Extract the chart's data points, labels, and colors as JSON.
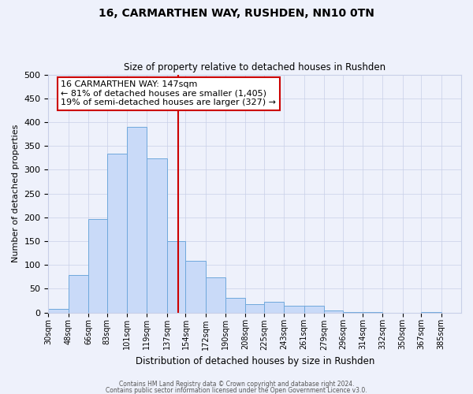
{
  "title": "16, CARMARTHEN WAY, RUSHDEN, NN10 0TN",
  "subtitle": "Size of property relative to detached houses in Rushden",
  "xlabel": "Distribution of detached houses by size in Rushden",
  "ylabel": "Number of detached properties",
  "bar_labels": [
    "30sqm",
    "48sqm",
    "66sqm",
    "83sqm",
    "101sqm",
    "119sqm",
    "137sqm",
    "154sqm",
    "172sqm",
    "190sqm",
    "208sqm",
    "225sqm",
    "243sqm",
    "261sqm",
    "279sqm",
    "296sqm",
    "314sqm",
    "332sqm",
    "350sqm",
    "367sqm",
    "385sqm"
  ],
  "bar_values": [
    8,
    78,
    197,
    333,
    390,
    323,
    150,
    109,
    73,
    30,
    18,
    22,
    14,
    14,
    5,
    1,
    1,
    0,
    0,
    1,
    0
  ],
  "bar_color": "#c9daf8",
  "bar_edge_color": "#6fa8dc",
  "property_line_x": 147,
  "bin_edges": [
    30,
    48,
    66,
    83,
    101,
    119,
    137,
    154,
    172,
    190,
    208,
    225,
    243,
    261,
    279,
    296,
    314,
    332,
    350,
    367,
    385,
    403
  ],
  "bin_left_edges": [
    30,
    48,
    66,
    83,
    101,
    119,
    137,
    154,
    172,
    190,
    208,
    225,
    243,
    261,
    279,
    296,
    314,
    332,
    350,
    367,
    385
  ],
  "tick_labels": [
    "30sqm",
    "48sqm",
    "66sqm",
    "83sqm",
    "101sqm",
    "119sqm",
    "137sqm",
    "154sqm",
    "172sqm",
    "190sqm",
    "208sqm",
    "225sqm",
    "243sqm",
    "261sqm",
    "279sqm",
    "296sqm",
    "314sqm",
    "332sqm",
    "350sqm",
    "367sqm",
    "385sqm"
  ],
  "ylim": [
    0,
    500
  ],
  "yticks": [
    0,
    50,
    100,
    150,
    200,
    250,
    300,
    350,
    400,
    450,
    500
  ],
  "annotation_line1": "16 CARMARTHEN WAY: 147sqm",
  "annotation_line2": "← 81% of detached houses are smaller (1,405)",
  "annotation_line3": "19% of semi-detached houses are larger (327) →",
  "footer_line1": "Contains HM Land Registry data © Crown copyright and database right 2024.",
  "footer_line2": "Contains public sector information licensed under the Open Government Licence v3.0.",
  "bg_color": "#eef1fb",
  "grid_color": "#c8cfe8",
  "vline_color": "#cc0000",
  "annotation_box_facecolor": "#ffffff",
  "annotation_box_edgecolor": "#cc0000",
  "title_fontsize": 10,
  "subtitle_fontsize": 8.5,
  "ylabel_fontsize": 8,
  "xlabel_fontsize": 8.5,
  "tick_fontsize": 7,
  "annot_fontsize": 8
}
